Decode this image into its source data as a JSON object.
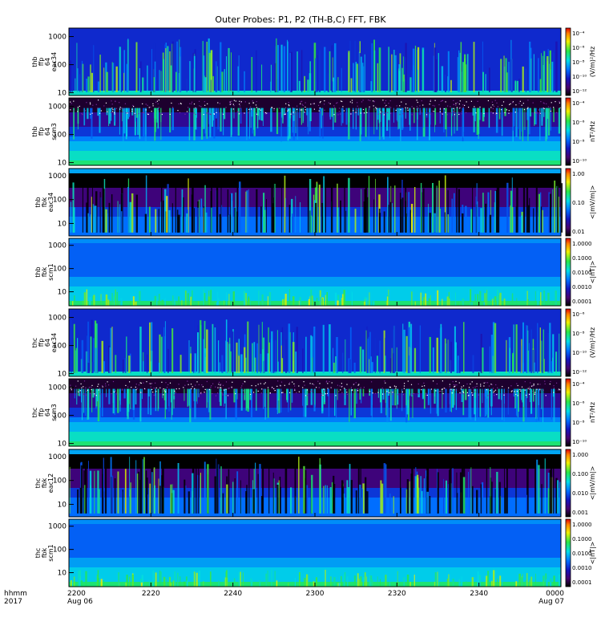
{
  "chart_data": {
    "type": "heatmap",
    "title": "Outer Probes: P1, P2 (TH-B,C) FFT, FBK",
    "x_axis": {
      "label_line1": "hhmm",
      "label_line2": "2017",
      "range_minutes": [
        0,
        120
      ],
      "ticks": [
        {
          "minute": 0,
          "label": "2200",
          "sublabel": "Aug 06"
        },
        {
          "minute": 20,
          "label": "2220",
          "sublabel": ""
        },
        {
          "minute": 40,
          "label": "2240",
          "sublabel": ""
        },
        {
          "minute": 60,
          "label": "2300",
          "sublabel": ""
        },
        {
          "minute": 80,
          "label": "2320",
          "sublabel": ""
        },
        {
          "minute": 100,
          "label": "2340",
          "sublabel": ""
        },
        {
          "minute": 120,
          "label": "0000",
          "sublabel": "Aug 07"
        }
      ]
    },
    "panels": [
      {
        "id": "thb-ffp-eac34",
        "ylabel": [
          "thb",
          "ffp",
          "64",
          "eac34"
        ],
        "ylim": [
          8,
          2000
        ],
        "yticks": [
          {
            "v": 1000,
            "l": "1000"
          },
          {
            "v": 100,
            "l": "100"
          },
          {
            "v": 10,
            "l": "10"
          }
        ],
        "cbar_label": "(V/m)²/Hz",
        "cbar_ticks": [
          "10⁻⁴",
          "10⁻⁶",
          "10⁻⁸",
          "10⁻¹⁰",
          "10⁻¹²"
        ],
        "kind": "eac"
      },
      {
        "id": "thb-ffp-scm3",
        "ylabel": [
          "thb",
          "ffp",
          "64",
          "scm3"
        ],
        "ylim": [
          8,
          2000
        ],
        "yticks": [
          {
            "v": 1000,
            "l": "1000"
          },
          {
            "v": 100,
            "l": "100"
          },
          {
            "v": 10,
            "l": "10"
          }
        ],
        "cbar_label": "nT²/Hz",
        "cbar_ticks": [
          "10⁻⁴",
          "10⁻⁶",
          "10⁻⁸",
          "10⁻¹⁰"
        ],
        "kind": "scm"
      },
      {
        "id": "thb-fbk-eac34",
        "ylabel": [
          "thb",
          "fbk",
          "eac34"
        ],
        "ylim": [
          3,
          2000
        ],
        "yticks": [
          {
            "v": 1000,
            "l": "1000"
          },
          {
            "v": 100,
            "l": "100"
          },
          {
            "v": 10,
            "l": "10"
          }
        ],
        "cbar_label": "<|mV/m|>",
        "cbar_ticks": [
          "1.00",
          "0.10",
          "0.01"
        ],
        "kind": "fbk-e"
      },
      {
        "id": "thb-fbk-scm1",
        "ylabel": [
          "thb",
          "fbk",
          "scm1"
        ],
        "ylim": [
          2.5,
          2000
        ],
        "yticks": [
          {
            "v": 1000,
            "l": "1000"
          },
          {
            "v": 100,
            "l": "100"
          },
          {
            "v": 10,
            "l": "10"
          }
        ],
        "cbar_label": "<|nT|>",
        "cbar_ticks": [
          "1.0000",
          "0.1000",
          "0.0100",
          "0.0010",
          "0.0001"
        ],
        "kind": "fbk-b"
      },
      {
        "id": "thc-ffp-eac34",
        "ylabel": [
          "thc",
          "ffp",
          "64",
          "eac34"
        ],
        "ylim": [
          8,
          2000
        ],
        "yticks": [
          {
            "v": 1000,
            "l": "1000"
          },
          {
            "v": 100,
            "l": "100"
          },
          {
            "v": 10,
            "l": "10"
          }
        ],
        "cbar_label": "(V/m)²/Hz",
        "cbar_ticks": [
          "10⁻⁶",
          "10⁻⁸",
          "10⁻¹⁰",
          "10⁻¹²"
        ],
        "kind": "eac"
      },
      {
        "id": "thc-ffp-scm3",
        "ylabel": [
          "thc",
          "ffp",
          "64",
          "scm3"
        ],
        "ylim": [
          8,
          2000
        ],
        "yticks": [
          {
            "v": 1000,
            "l": "1000"
          },
          {
            "v": 100,
            "l": "100"
          },
          {
            "v": 10,
            "l": "10"
          }
        ],
        "cbar_label": "nT²/Hz",
        "cbar_ticks": [
          "10⁻⁴",
          "10⁻⁶",
          "10⁻⁸",
          "10⁻¹⁰"
        ],
        "kind": "scm"
      },
      {
        "id": "thc-fbk-eac12",
        "ylabel": [
          "thc",
          "fbk",
          "eac12"
        ],
        "ylim": [
          3,
          2000
        ],
        "yticks": [
          {
            "v": 1000,
            "l": "1000"
          },
          {
            "v": 100,
            "l": "100"
          },
          {
            "v": 10,
            "l": "10"
          }
        ],
        "cbar_label": "<|mV/m|>",
        "cbar_ticks": [
          "1.000",
          "0.100",
          "0.010",
          "0.001"
        ],
        "kind": "fbk-e"
      },
      {
        "id": "thc-fbk-scm1",
        "ylabel": [
          "thc",
          "fbk",
          "scm1"
        ],
        "ylim": [
          2.5,
          2000
        ],
        "yticks": [
          {
            "v": 1000,
            "l": "1000"
          },
          {
            "v": 100,
            "l": "100"
          },
          {
            "v": 10,
            "l": "10"
          }
        ],
        "cbar_label": "<|nT|>",
        "cbar_ticks": [
          "1.0000",
          "0.1000",
          "0.0100",
          "0.0010",
          "0.0001"
        ],
        "kind": "fbk-b"
      }
    ]
  }
}
